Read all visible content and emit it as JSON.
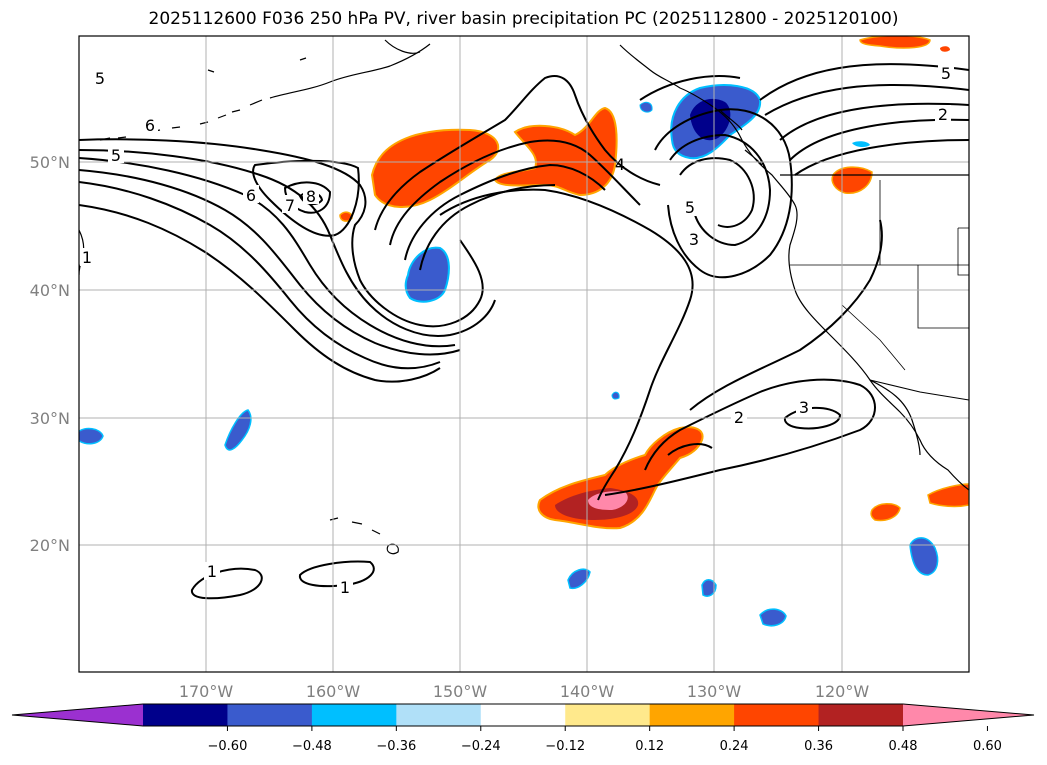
{
  "title": "2025112600 F036 250 hPa PV, river basin precipitation PC (2025112800 - 2025120100)",
  "lat_labels": [
    "50°N",
    "40°N",
    "30°N",
    "20°N"
  ],
  "lon_labels": [
    "170°W",
    "160°W",
    "150°W",
    "140°W",
    "130°W",
    "120°W"
  ],
  "contour_labels": [
    "5",
    "6",
    "5",
    "6",
    "7",
    "8",
    "1",
    "5",
    "2",
    "5",
    "3",
    "4",
    "2",
    "3",
    "1",
    "1"
  ],
  "colorbar": {
    "colors": [
      "#9b30d0",
      "#00008b",
      "#3a5bcd",
      "#00bfff",
      "#b0e0f8",
      "#ffffff",
      "#ffe98c",
      "#ffa500",
      "#ff4500",
      "#b22222",
      "#ff88aa"
    ],
    "tick_labels": [
      "−0.60",
      "−0.48",
      "−0.36",
      "−0.24",
      "−0.12",
      "0.12",
      "0.24",
      "0.36",
      "0.48",
      "0.60"
    ]
  }
}
